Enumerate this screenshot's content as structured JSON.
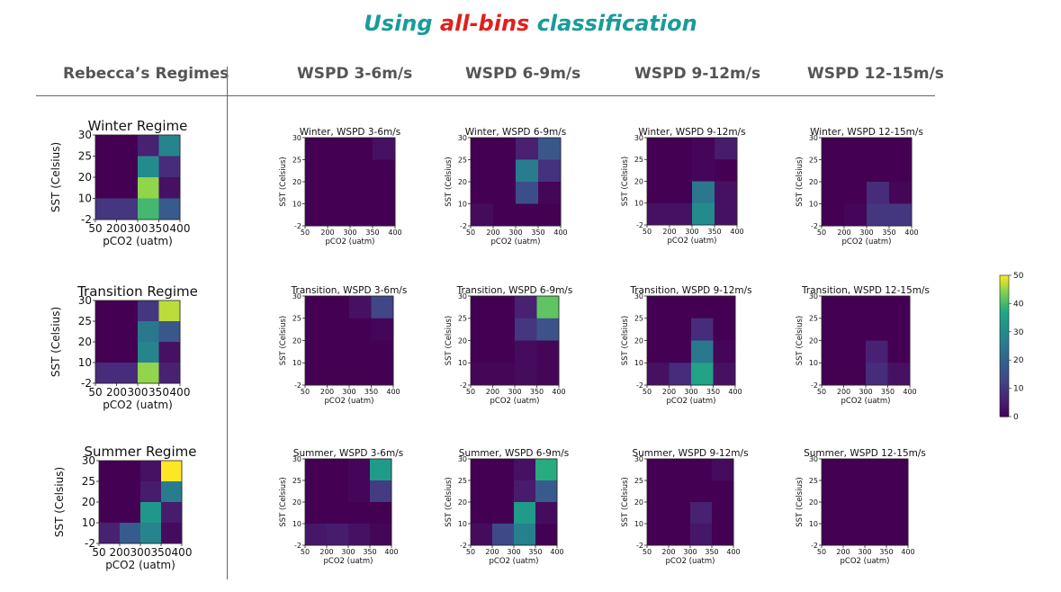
{
  "title": {
    "part1": "Using ",
    "part2": "all-bins",
    "part3": " classification",
    "color_main": "#1a9b9b",
    "color_accent": "#e0201b"
  },
  "headers": {
    "regimes": "Rebecca’s Regimes",
    "columns": [
      "WSPD 3-6m/s",
      "WSPD 6-9m/s",
      "WSPD 9-12m/s",
      "WSPD 12-15m/s"
    ]
  },
  "chart_data": {
    "type": "heatmap",
    "colormap": "viridis",
    "colorbar": {
      "min": 0,
      "max": 50,
      "ticks": [
        0,
        10,
        20,
        30,
        40,
        50
      ]
    },
    "x_tick_labels": [
      "50",
      "200",
      "300",
      "350",
      "400"
    ],
    "y_tick_labels": [
      "-2",
      "10",
      "20",
      "25",
      "30"
    ],
    "xlabel": "pCO2 (uatm)",
    "ylabel": "SST (Celsius)",
    "panels": [
      {
        "title": "Winter Regime",
        "values": [
          [
            0,
            0,
            6,
            28
          ],
          [
            0,
            0,
            30,
            8
          ],
          [
            0,
            0,
            45,
            3
          ],
          [
            10,
            10,
            40,
            18
          ]
        ]
      },
      {
        "title": "Transition Regime",
        "values": [
          [
            0,
            0,
            10,
            47
          ],
          [
            0,
            0,
            25,
            17
          ],
          [
            0,
            0,
            28,
            3
          ],
          [
            8,
            8,
            45,
            6
          ]
        ]
      },
      {
        "title": "Summer Regime",
        "values": [
          [
            0,
            0,
            3,
            50
          ],
          [
            0,
            0,
            5,
            26
          ],
          [
            0,
            0,
            33,
            5
          ],
          [
            6,
            18,
            28,
            2
          ]
        ]
      },
      {
        "title": "Winter, WSPD 3-6m/s",
        "values": [
          [
            0,
            0,
            0,
            3
          ],
          [
            0,
            0,
            0,
            0
          ],
          [
            0,
            0,
            0,
            0
          ],
          [
            0,
            0,
            0,
            0
          ]
        ]
      },
      {
        "title": "Winter, WSPD 6-9m/s",
        "values": [
          [
            0,
            0,
            6,
            17
          ],
          [
            0,
            0,
            26,
            9
          ],
          [
            0,
            0,
            15,
            1
          ],
          [
            2,
            0,
            0,
            0
          ]
        ]
      },
      {
        "title": "Winter, WSPD 9-12m/s",
        "values": [
          [
            0,
            0,
            1,
            5
          ],
          [
            0,
            0,
            1,
            0
          ],
          [
            0,
            0,
            25,
            3
          ],
          [
            3,
            3,
            30,
            3
          ]
        ]
      },
      {
        "title": "Winter, WSPD 12-15m/s",
        "values": [
          [
            0,
            0,
            0,
            0
          ],
          [
            0,
            0,
            0,
            0
          ],
          [
            0,
            0,
            8,
            1
          ],
          [
            0,
            1,
            10,
            10
          ]
        ]
      },
      {
        "title": "Transition, WSPD 3-6m/s",
        "values": [
          [
            0,
            0,
            3,
            13
          ],
          [
            0,
            0,
            0,
            1
          ],
          [
            0,
            0,
            0,
            0
          ],
          [
            0,
            0,
            0,
            0
          ]
        ]
      },
      {
        "title": "Transition, WSPD 6-9m/s",
        "values": [
          [
            0,
            0,
            6,
            42
          ],
          [
            0,
            0,
            10,
            16
          ],
          [
            0,
            0,
            2,
            1
          ],
          [
            1,
            1,
            2,
            1
          ]
        ]
      },
      {
        "title": "Transition, WSPD 9-12m/s",
        "values": [
          [
            0,
            0,
            0,
            0
          ],
          [
            0,
            0,
            8,
            0
          ],
          [
            0,
            0,
            25,
            1
          ],
          [
            3,
            8,
            36,
            3
          ]
        ]
      },
      {
        "title": "Transition, WSPD 12-15m/s",
        "values": [
          [
            0,
            0,
            0,
            0
          ],
          [
            0,
            0,
            0,
            0
          ],
          [
            0,
            0,
            6,
            0
          ],
          [
            0,
            0,
            8,
            3
          ]
        ]
      },
      {
        "title": "Summer, WSPD 3-6m/s",
        "values": [
          [
            0,
            0,
            1,
            34
          ],
          [
            0,
            0,
            1,
            11
          ],
          [
            0,
            0,
            0,
            0
          ],
          [
            4,
            5,
            3,
            1
          ]
        ]
      },
      {
        "title": "Summer, WSPD 6-9m/s",
        "values": [
          [
            0,
            0,
            3,
            38
          ],
          [
            0,
            0,
            5,
            18
          ],
          [
            0,
            0,
            34,
            2
          ],
          [
            2,
            14,
            27,
            0
          ]
        ]
      },
      {
        "title": "Summer, WSPD 9-12m/s",
        "values": [
          [
            0,
            0,
            0,
            2
          ],
          [
            0,
            0,
            0,
            0
          ],
          [
            0,
            0,
            6,
            0
          ],
          [
            0,
            0,
            4,
            0
          ]
        ]
      },
      {
        "title": "Summer, WSPD 12-15m/s",
        "values": [
          [
            0,
            0,
            0,
            0
          ],
          [
            0,
            0,
            0,
            0
          ],
          [
            0,
            0,
            0,
            0
          ],
          [
            0,
            0,
            0,
            0
          ]
        ]
      }
    ]
  }
}
